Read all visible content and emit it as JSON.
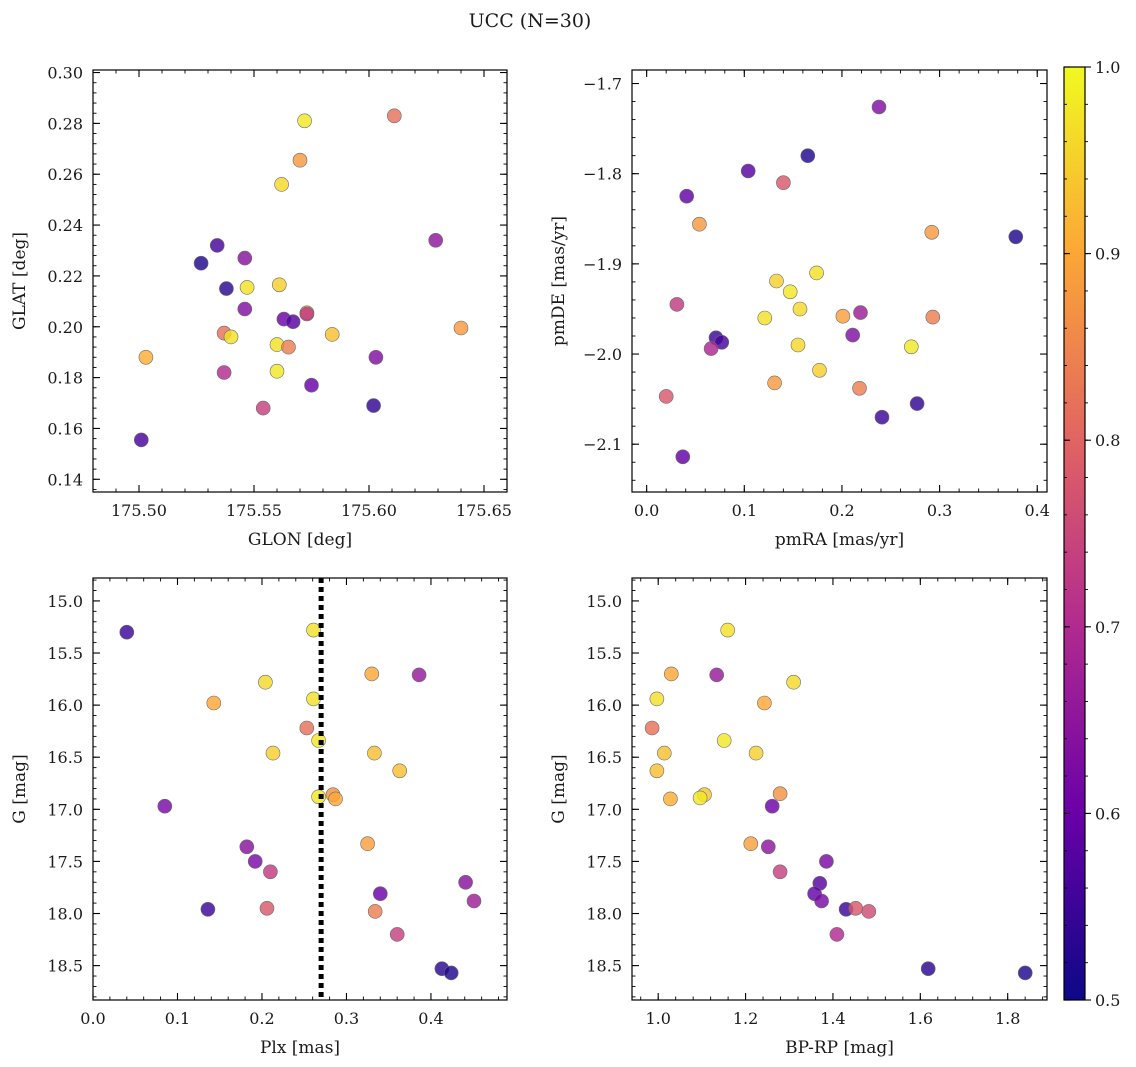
{
  "figure": {
    "title": "UCC (N=30)"
  },
  "colorbar": {
    "range": [
      0.5,
      1.0
    ],
    "ticks": [
      "0.5",
      "0.6",
      "0.7",
      "0.8",
      "0.9",
      "1.0"
    ],
    "colormap": [
      "#0d0887",
      "#6a00a8",
      "#b12a90",
      "#e16462",
      "#fca636",
      "#f0f921"
    ]
  },
  "chart_data": [
    {
      "type": "scatter",
      "xlabel": "GLON [deg]",
      "ylabel": "GLAT [deg]",
      "xlim": [
        175.48,
        175.66
      ],
      "ylim": [
        0.135,
        0.301
      ],
      "xticks": [
        "175.50",
        "175.55",
        "175.60",
        "175.65"
      ],
      "yticks": [
        "0.14",
        "0.16",
        "0.18",
        "0.20",
        "0.22",
        "0.24",
        "0.26",
        "0.28",
        "0.30"
      ],
      "invert_y": false,
      "points": [
        {
          "x": 175.572,
          "y": 0.281,
          "c": 0.98
        },
        {
          "x": 175.611,
          "y": 0.283,
          "c": 0.82
        },
        {
          "x": 175.57,
          "y": 0.2655,
          "c": 0.88
        },
        {
          "x": 175.562,
          "y": 0.256,
          "c": 0.96
        },
        {
          "x": 175.629,
          "y": 0.234,
          "c": 0.65
        },
        {
          "x": 175.534,
          "y": 0.232,
          "c": 0.56
        },
        {
          "x": 175.546,
          "y": 0.227,
          "c": 0.64
        },
        {
          "x": 175.527,
          "y": 0.225,
          "c": 0.52
        },
        {
          "x": 175.561,
          "y": 0.2165,
          "c": 0.95
        },
        {
          "x": 175.547,
          "y": 0.2155,
          "c": 0.97
        },
        {
          "x": 175.538,
          "y": 0.215,
          "c": 0.53
        },
        {
          "x": 175.546,
          "y": 0.207,
          "c": 0.63
        },
        {
          "x": 175.573,
          "y": 0.2055,
          "c": 0.9
        },
        {
          "x": 175.573,
          "y": 0.205,
          "c": 0.72
        },
        {
          "x": 175.563,
          "y": 0.203,
          "c": 0.6
        },
        {
          "x": 175.567,
          "y": 0.202,
          "c": 0.58
        },
        {
          "x": 175.64,
          "y": 0.1995,
          "c": 0.88
        },
        {
          "x": 175.537,
          "y": 0.1975,
          "c": 0.82
        },
        {
          "x": 175.584,
          "y": 0.197,
          "c": 0.93
        },
        {
          "x": 175.54,
          "y": 0.196,
          "c": 0.97
        },
        {
          "x": 175.56,
          "y": 0.193,
          "c": 0.97
        },
        {
          "x": 175.565,
          "y": 0.192,
          "c": 0.84
        },
        {
          "x": 175.503,
          "y": 0.188,
          "c": 0.91
        },
        {
          "x": 175.603,
          "y": 0.188,
          "c": 0.63
        },
        {
          "x": 175.56,
          "y": 0.1825,
          "c": 0.98
        },
        {
          "x": 175.537,
          "y": 0.182,
          "c": 0.7
        },
        {
          "x": 175.575,
          "y": 0.177,
          "c": 0.6
        },
        {
          "x": 175.554,
          "y": 0.168,
          "c": 0.74
        },
        {
          "x": 175.602,
          "y": 0.169,
          "c": 0.54
        },
        {
          "x": 175.501,
          "y": 0.1555,
          "c": 0.56
        }
      ]
    },
    {
      "type": "scatter",
      "xlabel": "pmRA [mas/yr]",
      "ylabel": "pmDE [mas/yr]",
      "xlim": [
        -0.015,
        0.41
      ],
      "ylim": [
        -2.153,
        -1.685
      ],
      "xticks": [
        "0.0",
        "0.1",
        "0.2",
        "0.3",
        "0.4"
      ],
      "yticks": [
        "−2.1",
        "−2.0",
        "−1.9",
        "−1.8",
        "−1.7"
      ],
      "invert_y": false,
      "points": [
        {
          "x": 0.238,
          "y": -1.726,
          "c": 0.63
        },
        {
          "x": 0.165,
          "y": -1.78,
          "c": 0.52
        },
        {
          "x": 0.104,
          "y": -1.797,
          "c": 0.58
        },
        {
          "x": 0.14,
          "y": -1.81,
          "c": 0.78
        },
        {
          "x": 0.041,
          "y": -1.825,
          "c": 0.59
        },
        {
          "x": 0.054,
          "y": -1.856,
          "c": 0.88
        },
        {
          "x": 0.292,
          "y": -1.865,
          "c": 0.88
        },
        {
          "x": 0.378,
          "y": -1.87,
          "c": 0.52
        },
        {
          "x": 0.174,
          "y": -1.91,
          "c": 0.97
        },
        {
          "x": 0.133,
          "y": -1.919,
          "c": 0.95
        },
        {
          "x": 0.147,
          "y": -1.931,
          "c": 0.98
        },
        {
          "x": 0.031,
          "y": -1.945,
          "c": 0.73
        },
        {
          "x": 0.157,
          "y": -1.95,
          "c": 0.96
        },
        {
          "x": 0.219,
          "y": -1.954,
          "c": 0.67
        },
        {
          "x": 0.201,
          "y": -1.958,
          "c": 0.89
        },
        {
          "x": 0.293,
          "y": -1.959,
          "c": 0.84
        },
        {
          "x": 0.121,
          "y": -1.96,
          "c": 0.97
        },
        {
          "x": 0.211,
          "y": -1.979,
          "c": 0.63
        },
        {
          "x": 0.071,
          "y": -1.982,
          "c": 0.55
        },
        {
          "x": 0.077,
          "y": -1.987,
          "c": 0.56
        },
        {
          "x": 0.155,
          "y": -1.99,
          "c": 0.96
        },
        {
          "x": 0.271,
          "y": -1.992,
          "c": 0.98
        },
        {
          "x": 0.066,
          "y": -1.994,
          "c": 0.69
        },
        {
          "x": 0.177,
          "y": -2.018,
          "c": 0.95
        },
        {
          "x": 0.131,
          "y": -2.032,
          "c": 0.88
        },
        {
          "x": 0.218,
          "y": -2.038,
          "c": 0.84
        },
        {
          "x": 0.02,
          "y": -2.047,
          "c": 0.78
        },
        {
          "x": 0.277,
          "y": -2.055,
          "c": 0.54
        },
        {
          "x": 0.241,
          "y": -2.07,
          "c": 0.55
        },
        {
          "x": 0.037,
          "y": -2.114,
          "c": 0.59
        }
      ]
    },
    {
      "type": "scatter",
      "xlabel": "Plx [mas]",
      "ylabel": "G [mag]",
      "xlim": [
        0.0,
        0.49
      ],
      "ylim": [
        18.83,
        14.78
      ],
      "xticks": [
        "0.0",
        "0.1",
        "0.2",
        "0.3",
        "0.4"
      ],
      "yticks": [
        "15.0",
        "15.5",
        "16.0",
        "16.5",
        "17.0",
        "17.5",
        "18.0",
        "18.5"
      ],
      "invert_y": true,
      "vline": 0.27,
      "points": [
        {
          "x": 0.04,
          "y": 15.3,
          "c": 0.55
        },
        {
          "x": 0.261,
          "y": 15.28,
          "c": 0.97
        },
        {
          "x": 0.33,
          "y": 15.7,
          "c": 0.9
        },
        {
          "x": 0.386,
          "y": 15.71,
          "c": 0.66
        },
        {
          "x": 0.204,
          "y": 15.78,
          "c": 0.96
        },
        {
          "x": 0.143,
          "y": 15.98,
          "c": 0.9
        },
        {
          "x": 0.261,
          "y": 15.94,
          "c": 0.97
        },
        {
          "x": 0.253,
          "y": 16.22,
          "c": 0.82
        },
        {
          "x": 0.267,
          "y": 16.34,
          "c": 0.98
        },
        {
          "x": 0.213,
          "y": 16.46,
          "c": 0.95
        },
        {
          "x": 0.333,
          "y": 16.46,
          "c": 0.93
        },
        {
          "x": 0.363,
          "y": 16.63,
          "c": 0.93
        },
        {
          "x": 0.267,
          "y": 16.88,
          "c": 0.98
        },
        {
          "x": 0.284,
          "y": 16.86,
          "c": 0.87
        },
        {
          "x": 0.287,
          "y": 16.9,
          "c": 0.9
        },
        {
          "x": 0.085,
          "y": 16.97,
          "c": 0.62
        },
        {
          "x": 0.325,
          "y": 17.33,
          "c": 0.89
        },
        {
          "x": 0.182,
          "y": 17.36,
          "c": 0.64
        },
        {
          "x": 0.192,
          "y": 17.5,
          "c": 0.62
        },
        {
          "x": 0.21,
          "y": 17.6,
          "c": 0.73
        },
        {
          "x": 0.441,
          "y": 17.7,
          "c": 0.64
        },
        {
          "x": 0.34,
          "y": 17.81,
          "c": 0.6
        },
        {
          "x": 0.451,
          "y": 17.88,
          "c": 0.67
        },
        {
          "x": 0.136,
          "y": 17.96,
          "c": 0.55
        },
        {
          "x": 0.206,
          "y": 17.95,
          "c": 0.78
        },
        {
          "x": 0.334,
          "y": 17.98,
          "c": 0.84
        },
        {
          "x": 0.36,
          "y": 18.2,
          "c": 0.74
        },
        {
          "x": 0.413,
          "y": 18.53,
          "c": 0.53
        },
        {
          "x": 0.424,
          "y": 18.57,
          "c": 0.52
        }
      ]
    },
    {
      "type": "scatter",
      "xlabel": "BP-RP [mag]",
      "ylabel": "G [mag]",
      "xlim": [
        0.94,
        1.89
      ],
      "ylim": [
        18.83,
        14.78
      ],
      "xticks": [
        "1.0",
        "1.2",
        "1.4",
        "1.6",
        "1.8"
      ],
      "yticks": [
        "15.0",
        "15.5",
        "16.0",
        "16.5",
        "17.0",
        "17.5",
        "18.0",
        "18.5"
      ],
      "invert_y": true,
      "points": [
        {
          "x": 1.159,
          "y": 15.28,
          "c": 0.97
        },
        {
          "x": 1.03,
          "y": 15.7,
          "c": 0.9
        },
        {
          "x": 1.134,
          "y": 15.71,
          "c": 0.66
        },
        {
          "x": 1.31,
          "y": 15.78,
          "c": 0.96
        },
        {
          "x": 0.997,
          "y": 15.94,
          "c": 0.97
        },
        {
          "x": 1.243,
          "y": 15.98,
          "c": 0.9
        },
        {
          "x": 0.986,
          "y": 16.22,
          "c": 0.82
        },
        {
          "x": 1.151,
          "y": 16.34,
          "c": 0.98
        },
        {
          "x": 1.014,
          "y": 16.46,
          "c": 0.93
        },
        {
          "x": 1.224,
          "y": 16.46,
          "c": 0.95
        },
        {
          "x": 0.997,
          "y": 16.63,
          "c": 0.93
        },
        {
          "x": 1.106,
          "y": 16.86,
          "c": 0.94
        },
        {
          "x": 1.279,
          "y": 16.85,
          "c": 0.87
        },
        {
          "x": 1.028,
          "y": 16.9,
          "c": 0.91
        },
        {
          "x": 1.096,
          "y": 16.89,
          "c": 0.98
        },
        {
          "x": 1.261,
          "y": 16.97,
          "c": 0.6
        },
        {
          "x": 1.212,
          "y": 17.33,
          "c": 0.89
        },
        {
          "x": 1.252,
          "y": 17.36,
          "c": 0.65
        },
        {
          "x": 1.385,
          "y": 17.5,
          "c": 0.62
        },
        {
          "x": 1.279,
          "y": 17.6,
          "c": 0.74
        },
        {
          "x": 1.37,
          "y": 17.71,
          "c": 0.58
        },
        {
          "x": 1.358,
          "y": 17.81,
          "c": 0.59
        },
        {
          "x": 1.374,
          "y": 17.88,
          "c": 0.62
        },
        {
          "x": 1.43,
          "y": 17.96,
          "c": 0.55
        },
        {
          "x": 1.452,
          "y": 17.95,
          "c": 0.78
        },
        {
          "x": 1.482,
          "y": 17.98,
          "c": 0.76
        },
        {
          "x": 1.409,
          "y": 18.2,
          "c": 0.7
        },
        {
          "x": 1.618,
          "y": 18.53,
          "c": 0.53
        },
        {
          "x": 1.84,
          "y": 18.57,
          "c": 0.52
        }
      ]
    }
  ]
}
